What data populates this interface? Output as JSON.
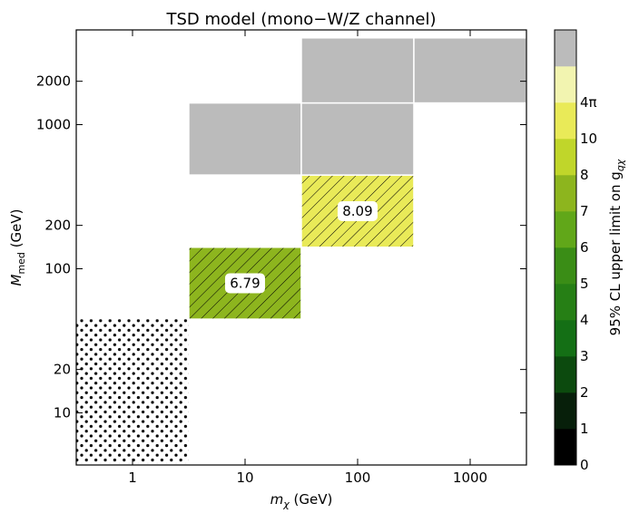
{
  "chart_data": {
    "type": "heatmap",
    "title": "TSD model (mono−W/Z  channel)",
    "xlabel": {
      "main": "m",
      "sub": "χ",
      "unit": " (GeV)"
    },
    "ylabel": {
      "main": "M",
      "sub": "med",
      "unit": " (GeV)"
    },
    "x_scale": "log",
    "y_scale": "log",
    "xlim_exponent": [
      -0.5,
      3.5
    ],
    "x_ticks": [
      {
        "value": 1,
        "label": "1"
      },
      {
        "value": 10,
        "label": "10"
      },
      {
        "value": 100,
        "label": "100"
      },
      {
        "value": 1000,
        "label": "1000"
      }
    ],
    "y_ticks": [
      {
        "value": 10,
        "label": "10"
      },
      {
        "value": 20,
        "label": "20"
      },
      {
        "value": 100,
        "label": "100"
      },
      {
        "value": 200,
        "label": "200"
      },
      {
        "value": 1000,
        "label": "1000"
      },
      {
        "value": 2000,
        "label": "2000"
      }
    ],
    "cells": [
      {
        "x_range": [
          3.16,
          31.6
        ],
        "y_range": [
          44.7,
          141
        ],
        "value": 6.79,
        "label": "6.79",
        "color": "#8db51e",
        "fill": "hatched"
      },
      {
        "x_range": [
          31.6,
          316
        ],
        "y_range": [
          141,
          447
        ],
        "value": 8.09,
        "label": "8.09",
        "color": "#e9ea58",
        "fill": "hatched"
      },
      {
        "x_range": [
          3.16,
          31.6
        ],
        "y_range": [
          447,
          1414
        ],
        "value": null,
        "label": "",
        "color": "#bbbbbb",
        "fill": "above 4π"
      },
      {
        "x_range": [
          31.6,
          316
        ],
        "y_range": [
          447,
          1414
        ],
        "value": null,
        "label": "",
        "color": "#bbbbbb",
        "fill": "above 4π"
      },
      {
        "x_range": [
          31.6,
          316
        ],
        "y_range": [
          1414,
          4000
        ],
        "value": null,
        "label": "",
        "color": "#bbbbbb",
        "fill": "above 4π"
      },
      {
        "x_range": [
          316,
          3160
        ],
        "y_range": [
          1414,
          4000
        ],
        "value": null,
        "label": "",
        "color": "#bbbbbb",
        "fill": "above 4π"
      },
      {
        "x_range": [
          0.316,
          3.16
        ],
        "y_range": [
          4.47,
          44.7
        ],
        "value": null,
        "label": "",
        "color": "#ffffff",
        "fill": "dotted"
      }
    ],
    "colorbar": {
      "label_main": "95% CL upper limit on g",
      "label_sub": "qχ",
      "levels": [
        {
          "label": "0",
          "color": "#000000"
        },
        {
          "label": "1",
          "color": "#071f0a"
        },
        {
          "label": "2",
          "color": "#0c4a0e"
        },
        {
          "label": "3",
          "color": "#146f15"
        },
        {
          "label": "4",
          "color": "#267f15"
        },
        {
          "label": "5",
          "color": "#3a8d16"
        },
        {
          "label": "6",
          "color": "#61a719"
        },
        {
          "label": "7",
          "color": "#8db51e"
        },
        {
          "label": "8",
          "color": "#c0d62a"
        },
        {
          "label": "10",
          "color": "#e9ea58"
        },
        {
          "label": "4π",
          "color": "#f2f4b0"
        },
        {
          "label": "",
          "color": "#bbbbbb"
        }
      ]
    }
  }
}
